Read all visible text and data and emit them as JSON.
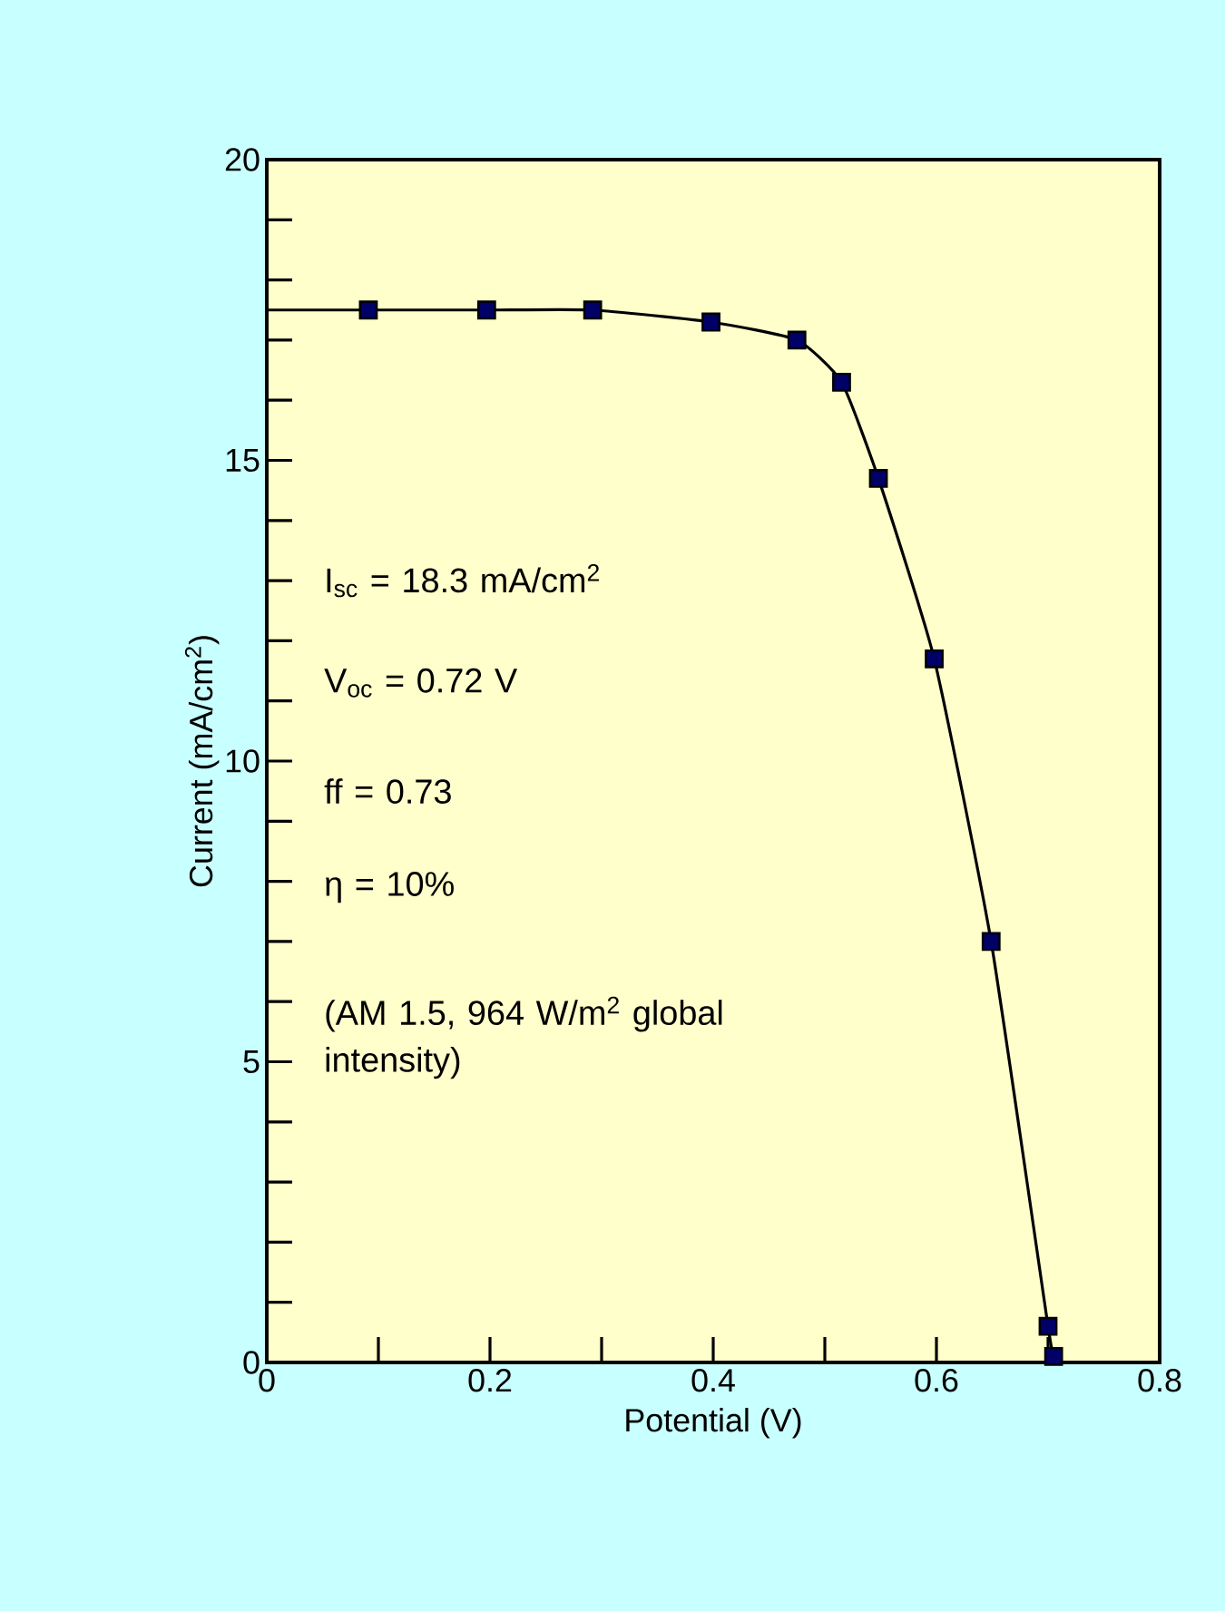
{
  "chart_data": {
    "type": "scatter",
    "xlabel": "Potential (V)",
    "ylabel": "Current (mA/cm$^{2}$)",
    "xlim": [
      0,
      0.8
    ],
    "ylim": [
      0,
      20
    ],
    "xticks": [
      0,
      0.2,
      0.4,
      0.6,
      0.8
    ],
    "yticks": [
      0,
      5,
      10,
      15,
      20
    ],
    "grid": false,
    "marker": "square",
    "line_style": "solid",
    "series": [
      {
        "type": "line",
        "marker": "none",
        "color": "#000000",
        "x": [
          0,
          0.091,
          0.197,
          0.292,
          0.398,
          0.475,
          0.515,
          0.548,
          0.598,
          0.649,
          0.7,
          0.705
        ],
        "values": [
          17.5,
          17.5,
          17.5,
          17.5,
          17.3,
          17.0,
          16.3,
          14.7,
          11.7,
          7.0,
          0.6,
          0.1
        ]
      },
      {
        "color": "#000066",
        "x": [
          0.091,
          0.197,
          0.292,
          0.398,
          0.475,
          0.515,
          0.548,
          0.598,
          0.649,
          0.7,
          0.705
        ],
        "values": [
          17.5,
          17.5,
          17.5,
          17.3,
          17.0,
          16.3,
          14.7,
          11.7,
          7.0,
          0.6,
          0.1
        ]
      }
    ],
    "annotations": [
      "I$_{sc}$ = 18.3 mA/cm$^{2}$",
      "V$_{oc}$ = 0.72 V",
      "ff = 0.73",
      "η = 10%",
      "(AM 1.5, 964 W/m$^{2}$ global intensity)"
    ]
  }
}
